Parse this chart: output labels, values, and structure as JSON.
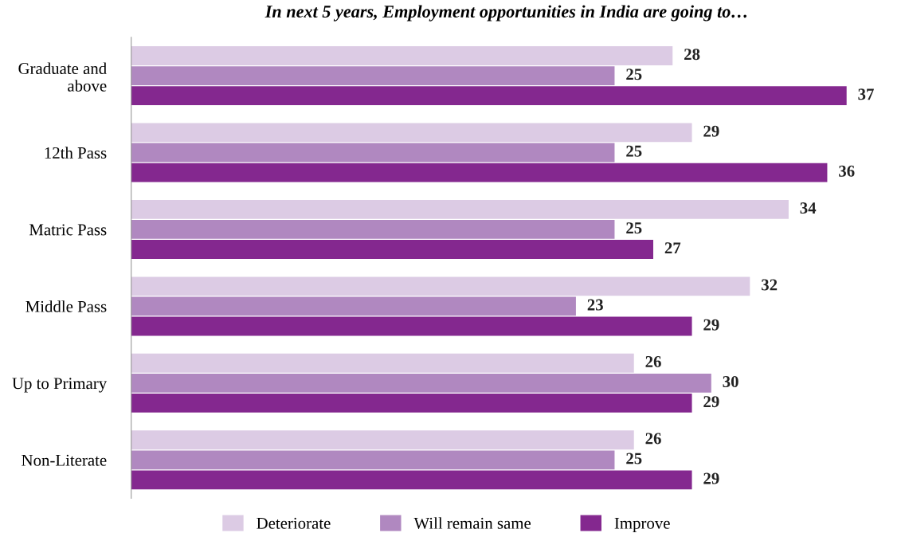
{
  "chart_data": {
    "type": "bar",
    "orientation": "horizontal",
    "title": "In next 5 years, Employment opportunities in India are going to…",
    "categories": [
      "Graduate and\nabove",
      "12th Pass",
      "Matric Pass",
      "Middle Pass",
      "Up to Primary",
      "Non-Literate"
    ],
    "series": [
      {
        "name": "Deteriorate",
        "color": "#dccbe4",
        "values": [
          28,
          29,
          34,
          32,
          26,
          26
        ]
      },
      {
        "name": "Will remain same",
        "color": "#b088c0",
        "values": [
          25,
          25,
          25,
          23,
          30,
          25
        ]
      },
      {
        "name": "Improve",
        "color": "#84288f",
        "values": [
          37,
          36,
          27,
          29,
          29,
          29
        ]
      }
    ],
    "data_labels": true,
    "legend": "bottom",
    "grid": false,
    "tick_labels": "y"
  }
}
